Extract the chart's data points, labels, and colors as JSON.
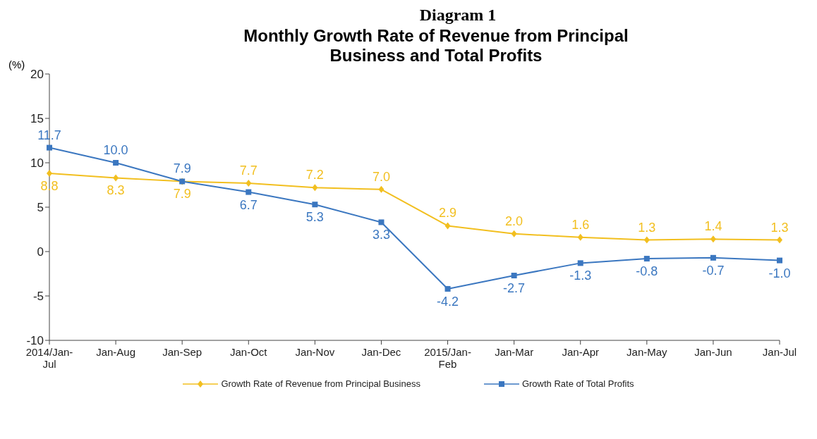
{
  "chart_data": {
    "type": "line",
    "title": "Diagram 1",
    "subtitle": "Monthly Growth Rate of Revenue from Principal Business and Total Profits",
    "ylabel": "(%)",
    "categories": [
      "2014/Jan-Jul",
      "Jan-Aug",
      "Jan-Sep",
      "Jan-Oct",
      "Jan-Nov",
      "Jan-Dec",
      "2015/Jan-Feb",
      "Jan-Mar",
      "Jan-Apr",
      "Jan-May",
      "Jan-Jun",
      "Jan-Jul"
    ],
    "series": [
      {
        "name": "Growth Rate of Revenue from Principal Business",
        "color": "#f2bf1f",
        "marker": "diamond",
        "values": [
          8.8,
          8.3,
          7.9,
          7.7,
          7.2,
          7.0,
          2.9,
          2.0,
          1.6,
          1.3,
          1.4,
          1.3
        ],
        "value_labels": [
          "8.8",
          "8.3",
          "7.9",
          "7.7",
          "7.2",
          "7.0",
          "2.9",
          "2.0",
          "1.6",
          "1.3",
          "1.4",
          "1.3"
        ]
      },
      {
        "name": "Growth Rate of Total Profits",
        "color": "#3b77c0",
        "marker": "square",
        "values": [
          11.7,
          10.0,
          7.9,
          6.7,
          5.3,
          3.3,
          -4.2,
          -2.7,
          -1.3,
          -0.8,
          -0.7,
          -1.0
        ],
        "value_labels": [
          "11.7",
          "10.0",
          "7.9",
          "6.7",
          "5.3",
          "3.3",
          "-4.2",
          "-2.7",
          "-1.3",
          "-0.8",
          "-0.7",
          "-1.0"
        ]
      }
    ],
    "ylim": [
      -10,
      20
    ],
    "yticks": [
      -10,
      -5,
      0,
      5,
      10,
      15,
      20
    ],
    "legend": "bottom",
    "line_style": "solid"
  }
}
